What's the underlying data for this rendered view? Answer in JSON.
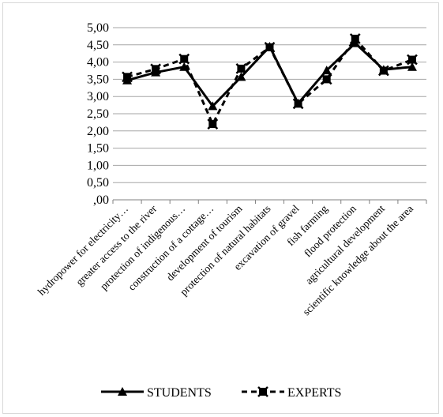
{
  "chart_data": {
    "type": "line",
    "title": "",
    "xlabel": "",
    "ylabel": "",
    "ylim": [
      0,
      5
    ],
    "yticks": [
      ",00",
      "0,50",
      "1,00",
      "1,50",
      "2,00",
      "2,50",
      "3,00",
      "3,50",
      "4,00",
      "4,50",
      "5,00"
    ],
    "categories": [
      "hydropower for electricity…",
      "greater access to the river",
      "protection of indigenous…",
      "construction of a cottage…",
      "development of tourism",
      "protection of natural habitats",
      "excavation of gravel",
      "fish farming",
      "flood protection",
      "agricultural development",
      "scientific knowledge about the area"
    ],
    "series": [
      {
        "name": "STUDENTS",
        "color": "#000000",
        "line_style": "solid",
        "marker": "triangle",
        "values": [
          3.47,
          3.7,
          3.86,
          2.72,
          3.57,
          4.45,
          2.8,
          3.76,
          4.55,
          3.78,
          3.86
        ]
      },
      {
        "name": "EXPERTS",
        "color": "#000000",
        "line_style": "dashed",
        "marker": "x-square",
        "values": [
          3.57,
          3.8,
          4.09,
          2.2,
          3.81,
          4.43,
          2.79,
          3.5,
          4.68,
          3.75,
          4.07
        ]
      }
    ],
    "grid": true,
    "legend": "bottom"
  }
}
